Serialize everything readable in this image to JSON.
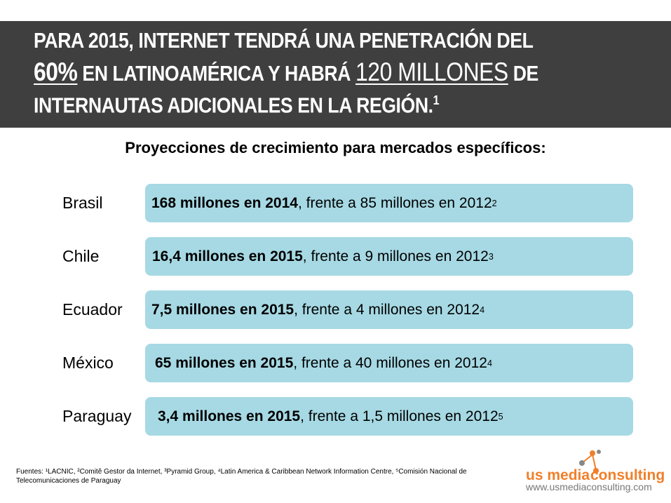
{
  "header": {
    "line1": "PARA 2015, INTERNET TENDRÁ UNA PENETRACIÓN DEL",
    "line2_highlight1": "60%",
    "line2_mid": " EN LATINOAMÉRICA Y HABRÁ ",
    "line2_highlight2": "120 MILLONES",
    "line2_end": " DE",
    "line3": "INTERNAUTAS ADICIONALES EN LA REGIÓN.",
    "line3_sup": "1"
  },
  "subtitle": "Proyecciones de crecimiento para mercados específicos:",
  "markets": [
    {
      "country": "Brasil",
      "bold": "168 millones en 2014",
      "rest": ", frente a 85 millones en 2012",
      "sup": "2"
    },
    {
      "country": "Chile",
      "bold": "16,4 millones en 2015",
      "rest": ", frente a 9 millones en 2012",
      "sup": "3"
    },
    {
      "country": "Ecuador",
      "bold": "7,5 millones en 2015",
      "rest": ", frente a 4 millones en 2012",
      "sup": "4"
    },
    {
      "country": "México",
      "bold": "65 millones en 2015",
      "rest": ", frente a 40 millones en 2012",
      "sup": "4"
    },
    {
      "country": "Paraguay",
      "bold": "3,4 millones en 2015",
      "rest": ", frente a 1,5 millones en 2012",
      "sup": "5"
    }
  ],
  "footer": {
    "sources": "Fuentes: ¹LACNIC, ²Comitê Gestor da Internet, ³Pyramid Group, ⁴Latin America & Caribbean Network Information Centre, ⁵Comisión Nacional de Telecomunicaciones de Paraguay"
  },
  "logo": {
    "word1": "us media",
    "word2": "consulting",
    "url": "www.usmediaconsulting.com"
  },
  "colors": {
    "header_bg": "#3f3f3f",
    "box_bg": "#a6d9e4",
    "brand_orange": "#f07f2a"
  }
}
